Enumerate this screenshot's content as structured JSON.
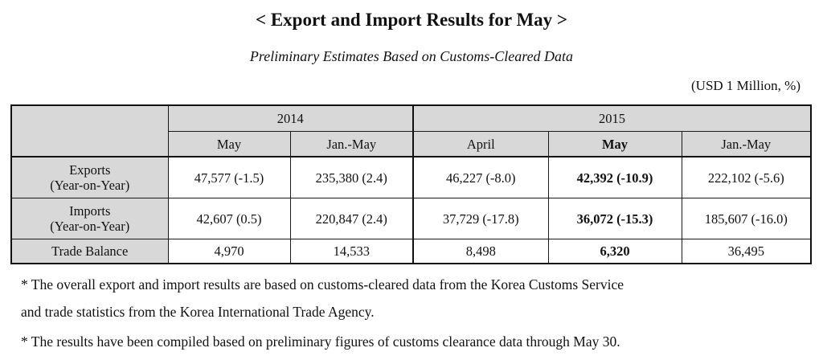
{
  "title": "< Export and Import Results for May >",
  "subtitle": "Preliminary Estimates Based on Customs-Cleared Data",
  "unit": "(USD 1 Million, %)",
  "table": {
    "years": [
      "2014",
      "2015"
    ],
    "months": [
      "May",
      "Jan.-May",
      "April",
      "May",
      "Jan.-May"
    ],
    "rows": [
      {
        "label_line1": "Exports",
        "label_line2": "(Year-on-Year)",
        "values": [
          "47,577 (-1.5)",
          "235,380 (2.4)",
          "46,227 (-8.0)",
          "42,392 (-10.9)",
          "222,102 (-5.6)"
        ]
      },
      {
        "label_line1": "Imports",
        "label_line2": "(Year-on-Year)",
        "values": [
          "42,607 (0.5)",
          "220,847 (2.4)",
          "37,729 (-17.8)",
          "36,072 (-15.3)",
          "185,607 (-16.0)"
        ]
      },
      {
        "label_line1": "Trade Balance",
        "values": [
          "4,970",
          "14,533",
          "8,498",
          "6,320",
          "36,495"
        ]
      }
    ]
  },
  "notes": [
    "* The overall export and import results are based on customs-cleared data from the Korea Customs Service",
    "and trade statistics from the Korea International Trade Agency.",
    "* The results have been compiled based on preliminary figures of customs clearance data through May 30."
  ]
}
